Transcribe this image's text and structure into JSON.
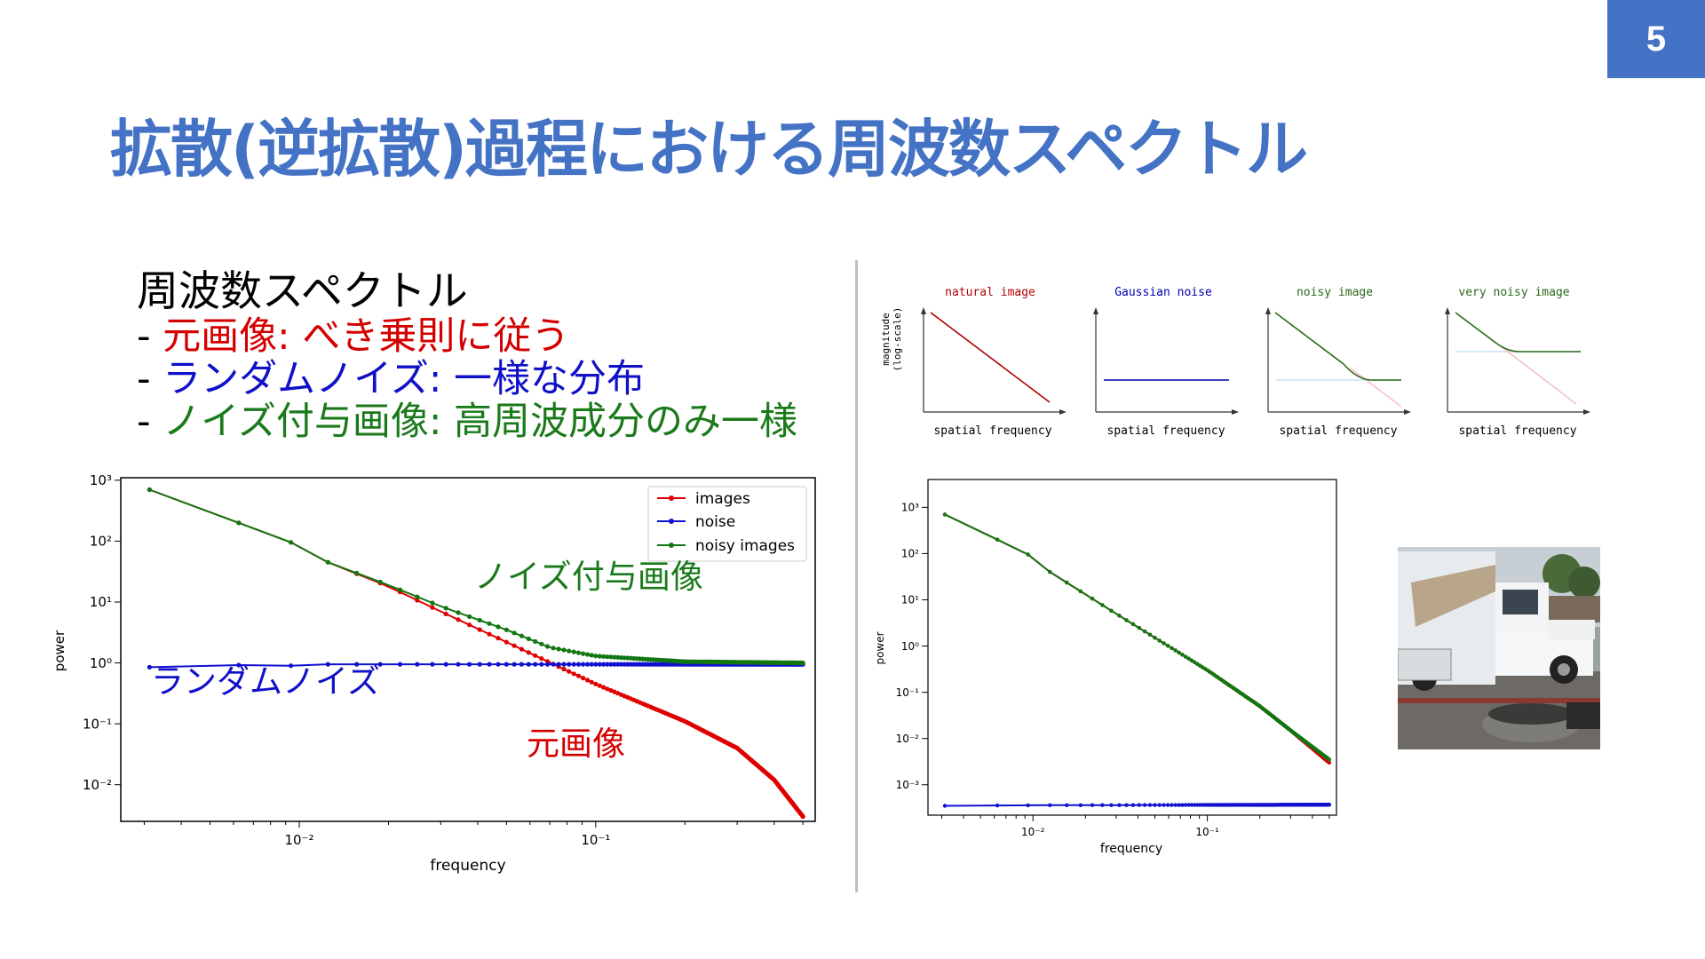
{
  "page_number": "5",
  "title": "拡散(逆拡散)過程における周波数スペクトル",
  "bullets": {
    "heading": "周波数スペクトル",
    "items": [
      {
        "prefix": "- ",
        "label": "元画像: べき乗則に従う",
        "color": "#d40000"
      },
      {
        "prefix": "- ",
        "label": "ランダムノイズ: 一様な分布",
        "color": "#1010c8"
      },
      {
        "prefix": "- ",
        "label": "ノイズ付与画像: 高周波成分のみ一様",
        "color": "#1a7a1a"
      }
    ]
  },
  "chart_data": [
    {
      "type": "line",
      "xscale": "log",
      "yscale": "log",
      "xlabel": "frequency",
      "ylabel": "power",
      "xlim": [
        0.0025,
        0.55
      ],
      "ylim": [
        0.0025,
        1100
      ],
      "xticks": [
        {
          "value": 0.01,
          "label": "10⁻²"
        },
        {
          "value": 0.1,
          "label": "10⁻¹"
        }
      ],
      "yticks": [
        {
          "value": 1000,
          "label": "10³"
        },
        {
          "value": 100,
          "label": "10²"
        },
        {
          "value": 10,
          "label": "10¹"
        },
        {
          "value": 1,
          "label": "10⁰"
        },
        {
          "value": 0.1,
          "label": "10⁻¹"
        },
        {
          "value": 0.01,
          "label": "10⁻²"
        }
      ],
      "legend": {
        "placement": "top-right",
        "entries": [
          "images",
          "noise",
          "noisy images"
        ]
      },
      "series": [
        {
          "name": "images",
          "color": "#e00000",
          "x_range": [
            0.003125,
            0.5
          ],
          "y_points": [
            [
              0.003125,
              700
            ],
            [
              0.00625,
              200
            ],
            [
              0.0094,
              95
            ],
            [
              0.0125,
              45
            ],
            [
              0.02,
              18
            ],
            [
              0.03,
              7
            ],
            [
              0.05,
              2.2
            ],
            [
              0.1,
              0.45
            ],
            [
              0.2,
              0.11
            ],
            [
              0.3,
              0.04
            ],
            [
              0.4,
              0.012
            ],
            [
              0.5,
              0.003
            ]
          ]
        },
        {
          "name": "noise",
          "color": "#1010d0",
          "x_range": [
            0.003125,
            0.5
          ],
          "y_points": [
            [
              0.003125,
              0.85
            ],
            [
              0.00625,
              0.92
            ],
            [
              0.0094,
              0.9
            ],
            [
              0.0125,
              0.95
            ],
            [
              0.02,
              0.95
            ],
            [
              0.05,
              0.95
            ],
            [
              0.1,
              0.95
            ],
            [
              0.5,
              0.95
            ]
          ]
        },
        {
          "name": "noisy images",
          "color": "#117711",
          "x_range": [
            0.003125,
            0.5
          ],
          "y_points": [
            [
              0.003125,
              700
            ],
            [
              0.00625,
              200
            ],
            [
              0.0094,
              95
            ],
            [
              0.0125,
              45
            ],
            [
              0.02,
              19
            ],
            [
              0.03,
              8.5
            ],
            [
              0.05,
              3.5
            ],
            [
              0.07,
              1.8
            ],
            [
              0.1,
              1.3
            ],
            [
              0.2,
              1.05
            ],
            [
              0.5,
              1.0
            ]
          ]
        }
      ],
      "annotations": [
        {
          "text": "ノイズ付与画像",
          "color": "#1a7a1a",
          "at": [
            0.06,
            6
          ]
        },
        {
          "text": "ランダムノイズ",
          "color": "#1010c8",
          "at": [
            0.003125,
            0.5
          ]
        },
        {
          "text": "元画像",
          "color": "#d40000",
          "at": [
            0.07,
            0.022
          ]
        }
      ]
    },
    {
      "type": "schematic",
      "panels": [
        {
          "title": "natural image",
          "xlabel": "spatial frequency",
          "ylabel": "magnitude (log-scale)",
          "color": "#b00000"
        },
        {
          "title": "Gaussian noise",
          "xlabel": "spatial frequency",
          "color": "#0000b0"
        },
        {
          "title": "noisy image",
          "xlabel": "spatial frequency",
          "color": "#2a6a1a"
        },
        {
          "title": "very noisy image",
          "xlabel": "spatial frequency",
          "color": "#2a6a1a"
        }
      ]
    },
    {
      "type": "line",
      "xscale": "log",
      "yscale": "log",
      "xlabel": "frequency",
      "ylabel": "power",
      "xlim": [
        0.0025,
        0.55
      ],
      "ylim": [
        0.00022,
        4000
      ],
      "xticks": [
        {
          "value": 0.01,
          "label": "10⁻²"
        },
        {
          "value": 0.1,
          "label": "10⁻¹"
        }
      ],
      "yticks": [
        {
          "value": 1000,
          "label": "10³"
        },
        {
          "value": 100,
          "label": "10²"
        },
        {
          "value": 10,
          "label": "10¹"
        },
        {
          "value": 1,
          "label": "10⁰"
        },
        {
          "value": 0.1,
          "label": "10⁻¹"
        },
        {
          "value": 0.01,
          "label": "10⁻²"
        },
        {
          "value": 0.001,
          "label": "10⁻³"
        }
      ],
      "series": [
        {
          "name": "",
          "color": "#e00000",
          "x_range": [
            0.003125,
            0.5
          ],
          "y_points": [
            [
              0.003125,
              700
            ],
            [
              0.00625,
              200
            ],
            [
              0.0094,
              95
            ],
            [
              0.0125,
              40
            ],
            [
              0.03,
              5
            ],
            [
              0.1,
              0.3
            ],
            [
              0.2,
              0.05
            ],
            [
              0.3,
              0.015
            ],
            [
              0.5,
              0.003
            ]
          ]
        },
        {
          "name": "",
          "color": "#1010d0",
          "x_range": [
            0.003125,
            0.5
          ],
          "y_points": [
            [
              0.003125,
              0.00035
            ],
            [
              0.01,
              0.00036
            ],
            [
              0.5,
              0.00037
            ]
          ]
        },
        {
          "name": "",
          "color": "#117711",
          "x_range": [
            0.003125,
            0.5
          ],
          "y_points": [
            [
              0.003125,
              700
            ],
            [
              0.00625,
              200
            ],
            [
              0.0094,
              95
            ],
            [
              0.0125,
              40
            ],
            [
              0.03,
              5
            ],
            [
              0.1,
              0.3
            ],
            [
              0.2,
              0.05
            ],
            [
              0.3,
              0.015
            ],
            [
              0.5,
              0.0035
            ]
          ]
        }
      ]
    }
  ]
}
